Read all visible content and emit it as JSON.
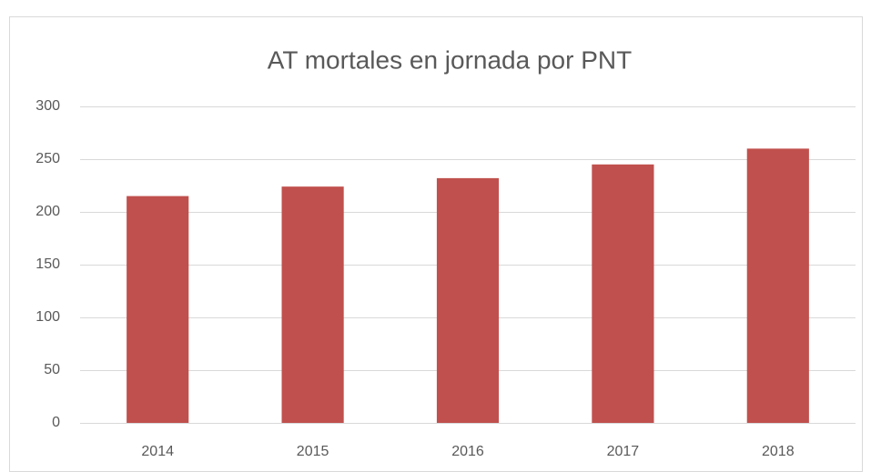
{
  "chart_data": {
    "type": "bar",
    "title": "AT mortales en jornada por PNT",
    "categories": [
      "2014",
      "2015",
      "2016",
      "2017",
      "2018"
    ],
    "values": [
      215,
      224,
      232,
      245,
      260
    ],
    "color": "#c0504d",
    "ylim": [
      0,
      300
    ],
    "yticks": [
      0,
      50,
      100,
      150,
      200,
      250,
      300
    ],
    "grid": true
  }
}
